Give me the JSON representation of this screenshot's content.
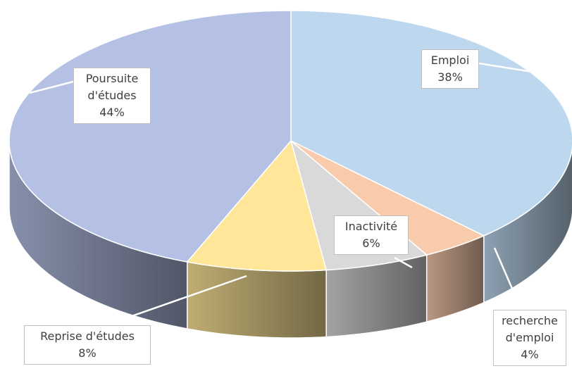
{
  "chart_data": {
    "type": "pie",
    "categories": [
      "Emploi",
      "recherche d'emploi",
      "Inactivité",
      "Reprise d'études",
      "Poursuite d'études"
    ],
    "values": [
      38,
      4,
      6,
      8,
      44
    ],
    "value_labels": [
      "38%",
      "4%",
      "6%",
      "8%",
      "44%"
    ],
    "colors": [
      "#bdd7ee",
      "#f8cbad",
      "#d9d9d9",
      "#ffe699",
      "#b4c0e4"
    ]
  }
}
